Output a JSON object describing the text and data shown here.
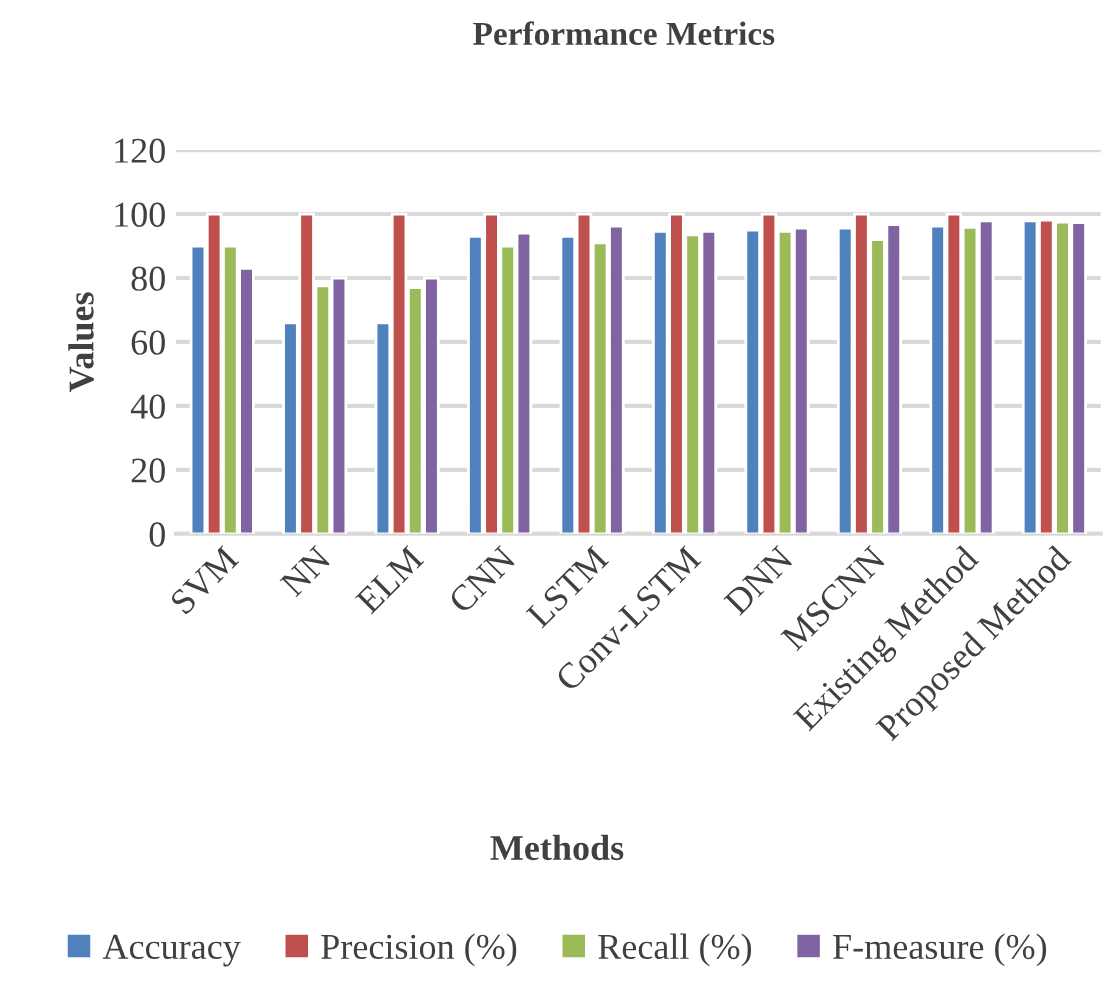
{
  "chart_data": {
    "type": "bar",
    "title": "Performance Metrics",
    "xlabel": "Methods",
    "ylabel": "Values",
    "categories": [
      "SVM",
      "NN",
      "ELM",
      "CNN",
      "LSTM",
      "Conv-LSTM",
      "DNN",
      "MSCNN",
      "Existing Method",
      "Proposed Method"
    ],
    "series": [
      {
        "name": "Accuracy",
        "color": "#4f81bd",
        "values": [
          90,
          66,
          66,
          93,
          93,
          94.6,
          95,
          95.6,
          96.2,
          97.9
        ]
      },
      {
        "name": "Precision (%)",
        "color": "#c0504d",
        "values": [
          100,
          100,
          100,
          100,
          100,
          100,
          100,
          100,
          100,
          98.1
        ]
      },
      {
        "name": "Recall (%)",
        "color": "#9bbb59",
        "values": [
          90,
          77.5,
          77,
          90,
          91,
          93.5,
          94.6,
          92,
          95.8,
          97.5
        ]
      },
      {
        "name": "F-measure (%)",
        "color": "#8064a2",
        "values": [
          83,
          80,
          80,
          94,
          96.2,
          94.6,
          95.6,
          96.7,
          97.9,
          97.3
        ]
      }
    ],
    "ylim": [
      0,
      120
    ],
    "yticks": [
      0,
      20,
      40,
      60,
      80,
      100,
      120
    ],
    "grid": "y",
    "legend": "bottom"
  }
}
